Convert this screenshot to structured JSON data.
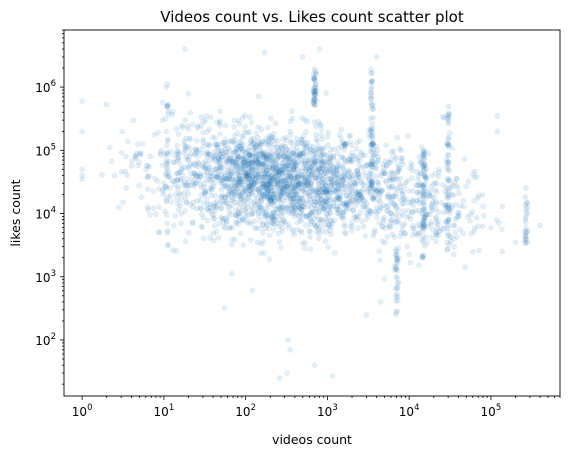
{
  "chart_data": {
    "type": "scatter",
    "title": "Videos count vs. Likes count scatter plot",
    "xlabel": "videos count",
    "ylabel": "likes count",
    "xscale": "log",
    "yscale": "log",
    "xlim": [
      0.6,
      700000
    ],
    "ylim": [
      13,
      8000000
    ],
    "grid": false,
    "marker_color": "#1f77b4",
    "marker_alpha": 0.12,
    "x_ticks": [
      {
        "value": 1,
        "base": "10",
        "exp": "0"
      },
      {
        "value": 10,
        "base": "10",
        "exp": "1"
      },
      {
        "value": 100,
        "base": "10",
        "exp": "2"
      },
      {
        "value": 1000,
        "base": "10",
        "exp": "3"
      },
      {
        "value": 10000,
        "base": "10",
        "exp": "4"
      },
      {
        "value": 100000,
        "base": "10",
        "exp": "5"
      }
    ],
    "y_ticks": [
      {
        "value": 100,
        "base": "10",
        "exp": "2"
      },
      {
        "value": 1000,
        "base": "10",
        "exp": "3"
      },
      {
        "value": 10000,
        "base": "10",
        "exp": "4"
      },
      {
        "value": 100000,
        "base": "10",
        "exp": "5"
      },
      {
        "value": 1000000,
        "base": "10",
        "exp": "6"
      }
    ],
    "clusters": [
      {
        "x": 250,
        "y": 30000,
        "sx": 0.55,
        "sy": 0.42,
        "n": 900
      },
      {
        "x": 150,
        "y": 40000,
        "sx": 0.45,
        "sy": 0.35,
        "n": 500
      },
      {
        "x": 900,
        "y": 25000,
        "sx": 0.45,
        "sy": 0.4,
        "n": 400
      },
      {
        "x": 30,
        "y": 60000,
        "sx": 0.35,
        "sy": 0.45,
        "n": 200
      },
      {
        "x": 6000,
        "y": 20000,
        "sx": 0.4,
        "sy": 0.45,
        "n": 250
      },
      {
        "x": 20000,
        "y": 12000,
        "sx": 0.35,
        "sy": 0.4,
        "n": 150
      },
      {
        "x": 8,
        "y": 60000,
        "sx": 0.3,
        "sy": 0.35,
        "n": 60
      }
    ],
    "columns": [
      {
        "x": 700,
        "y_min": 500000,
        "y_max": 2000000,
        "n": 40
      },
      {
        "x": 3500,
        "y_min": 20000,
        "y_max": 2000000,
        "n": 60
      },
      {
        "x": 7000,
        "y_min": 250,
        "y_max": 3000,
        "n": 30
      },
      {
        "x": 15000,
        "y_min": 2000,
        "y_max": 100000,
        "n": 60
      },
      {
        "x": 30000,
        "y_min": 2000,
        "y_max": 500000,
        "n": 50
      },
      {
        "x": 270000,
        "y_min": 3000,
        "y_max": 30000,
        "n": 25
      },
      {
        "x": 11,
        "y_min": 3000,
        "y_max": 1500000,
        "n": 30
      }
    ],
    "points": [
      [
        1,
        600000
      ],
      [
        1,
        200000
      ],
      [
        1,
        50000
      ],
      [
        1,
        40000
      ],
      [
        1,
        35000
      ],
      [
        260,
        25
      ],
      [
        320,
        30
      ],
      [
        330,
        100
      ],
      [
        350,
        70
      ],
      [
        700,
        40
      ],
      [
        1150,
        27
      ],
      [
        400000,
        6500
      ],
      [
        55,
        320
      ],
      [
        120000,
        350000
      ],
      [
        120000,
        200000
      ],
      [
        4000,
        3000000
      ],
      [
        800,
        4000000
      ],
      [
        500,
        3000000
      ],
      [
        170,
        3500000
      ],
      [
        18,
        4000000
      ],
      [
        3000,
        250
      ],
      [
        4500,
        400
      ],
      [
        60000,
        2500
      ],
      [
        200000,
        3500
      ],
      [
        100000,
        6000
      ]
    ]
  }
}
